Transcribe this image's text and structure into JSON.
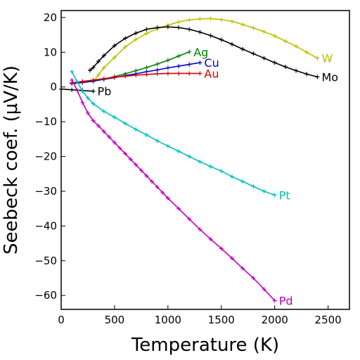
{
  "chart_data": {
    "type": "line",
    "title": "",
    "xlabel": "Temperature (K)",
    "ylabel": "Seebeck coef. (μV/K)",
    "xlim": [
      0,
      2700
    ],
    "ylim": [
      -64,
      22
    ],
    "xticks": [
      0,
      500,
      1000,
      1500,
      2000,
      2500
    ],
    "yticks": [
      -60,
      -50,
      -40,
      -30,
      -20,
      -10,
      0,
      10,
      20
    ],
    "xtick_labels": [
      "0",
      "500",
      "1000",
      "1500",
      "2000",
      "2500"
    ],
    "ytick_labels": [
      "−60",
      "−50",
      "−40",
      "−30",
      "−20",
      "−10",
      "0",
      "10",
      "20"
    ],
    "grid": false,
    "legend": "labels at end of each series",
    "series": [
      {
        "name": "W",
        "color": "#bfbf00",
        "x": [
          300,
          350,
          400,
          500,
          600,
          700,
          800,
          900,
          1000,
          1100,
          1200,
          1300,
          1400,
          1500,
          1600,
          1700,
          1800,
          1900,
          2000,
          2100,
          2200,
          2300,
          2400
        ],
        "y": [
          1.5,
          3.5,
          5.5,
          8.5,
          11.5,
          13.7,
          15.4,
          16.8,
          17.8,
          18.7,
          19.3,
          19.6,
          19.7,
          19.4,
          18.9,
          18.0,
          17.0,
          15.9,
          14.7,
          13.2,
          11.7,
          10.0,
          8.3
        ]
      },
      {
        "name": "Mo",
        "color": "#000000",
        "x": [
          270,
          300,
          350,
          400,
          500,
          600,
          700,
          800,
          900,
          1000,
          1100,
          1200,
          1300,
          1400,
          1500,
          1600,
          1700,
          1800,
          1900,
          2000,
          2100,
          2200,
          2300,
          2400
        ],
        "y": [
          4.8,
          5.6,
          7.4,
          9.0,
          11.9,
          14.0,
          15.5,
          16.6,
          17.1,
          17.3,
          17.1,
          16.6,
          15.8,
          14.8,
          13.6,
          12.3,
          10.9,
          9.6,
          8.3,
          7.0,
          5.8,
          4.7,
          3.7,
          2.9
        ]
      },
      {
        "name": "Ag",
        "color": "#008000",
        "x": [
          100,
          200,
          300,
          400,
          500,
          600,
          700,
          800,
          900,
          1000,
          1100,
          1200
        ],
        "y": [
          1.0,
          1.3,
          1.7,
          2.3,
          3.0,
          3.8,
          4.7,
          5.6,
          6.6,
          7.7,
          8.9,
          10.1
        ]
      },
      {
        "name": "Cu",
        "color": "#0000cc",
        "x": [
          100,
          200,
          300,
          400,
          500,
          600,
          700,
          800,
          900,
          1000,
          1100,
          1200,
          1300
        ],
        "y": [
          1.0,
          1.3,
          1.7,
          2.2,
          2.7,
          3.3,
          3.8,
          4.4,
          4.9,
          5.5,
          6.0,
          6.5,
          7.0
        ]
      },
      {
        "name": "Au",
        "color": "#dd0000",
        "x": [
          100,
          200,
          300,
          400,
          500,
          600,
          700,
          800,
          900,
          1000,
          1100,
          1200,
          1300
        ],
        "y": [
          1.2,
          1.6,
          2.0,
          2.4,
          2.8,
          3.1,
          3.4,
          3.6,
          3.8,
          3.9,
          3.9,
          3.9,
          3.9
        ]
      },
      {
        "name": "Pb",
        "color": "#000000",
        "x": [
          0,
          100,
          200,
          300
        ],
        "y": [
          -0.6,
          -0.8,
          -1.0,
          -1.2
        ]
      },
      {
        "name": "Pt",
        "color": "#00bfbf",
        "x": [
          100,
          150,
          200,
          250,
          300,
          400,
          500,
          600,
          700,
          800,
          900,
          1000,
          1100,
          1200,
          1300,
          1400,
          1500,
          1600,
          1700,
          1800,
          1900,
          2000
        ],
        "y": [
          4.4,
          1.5,
          -1.2,
          -3.2,
          -4.8,
          -7.0,
          -8.7,
          -10.5,
          -12.2,
          -13.8,
          -15.5,
          -17.0,
          -18.5,
          -20.0,
          -21.5,
          -22.9,
          -24.2,
          -25.8,
          -27.2,
          -28.6,
          -30.0,
          -31.1
        ]
      },
      {
        "name": "Pd",
        "color": "#bf00bf",
        "x": [
          100,
          150,
          200,
          250,
          300,
          350,
          400,
          450,
          500,
          550,
          600,
          650,
          700,
          750,
          800,
          850,
          900,
          950,
          1000,
          1100,
          1200,
          1300,
          1400,
          1500,
          1600,
          1700,
          1800,
          1900,
          2000
        ],
        "y": [
          2.0,
          -1.0,
          -4.5,
          -7.5,
          -9.7,
          -11.2,
          -12.8,
          -14.4,
          -16.0,
          -17.6,
          -19.2,
          -20.8,
          -22.4,
          -24.0,
          -25.6,
          -27.2,
          -28.8,
          -30.4,
          -32.0,
          -35.0,
          -38.0,
          -41.0,
          -43.8,
          -46.5,
          -49.3,
          -52.2,
          -55.0,
          -58.2,
          -61.5
        ]
      }
    ]
  }
}
